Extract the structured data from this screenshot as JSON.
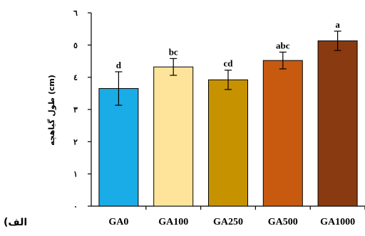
{
  "chart_data": {
    "type": "bar",
    "categories": [
      "GA0",
      "GA100",
      "GA250",
      "GA500",
      "GA1000"
    ],
    "values": [
      3.65,
      4.32,
      3.92,
      4.52,
      5.13
    ],
    "errors": [
      0.52,
      0.26,
      0.3,
      0.26,
      0.3
    ],
    "significance": [
      "d",
      "bc",
      "cd",
      "abc",
      "a"
    ],
    "colors": [
      "#1aace6",
      "#fde49a",
      "#c79200",
      "#c85a10",
      "#8a3a10"
    ],
    "ylabel": "طول گیاهچه (cm)",
    "ylim": [
      0,
      6
    ],
    "yticks": [
      0,
      1,
      2,
      3,
      4,
      5,
      6
    ],
    "ytick_labels": [
      "٠",
      "١",
      "٢",
      "٣",
      "٤",
      "٥",
      "٦"
    ],
    "grid": false
  },
  "panel_label": "(الف"
}
